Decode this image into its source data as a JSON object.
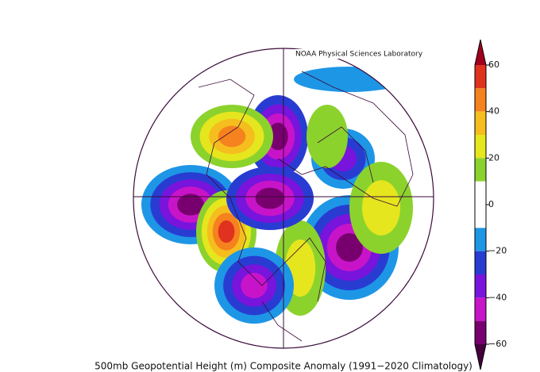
{
  "map": {
    "credit": "NOAA Physical Sciences Laboratory",
    "caption": "500mb Geopotential Height (m) Composite Anomaly (1991−2020 Climatology)",
    "colorbar": {
      "lim": [
        -60,
        60
      ],
      "ticks": [
        60,
        40,
        20,
        0,
        {
          "value": -20,
          "label": "−20"
        },
        {
          "value": -40,
          "label": "−40"
        },
        {
          "value": -60,
          "label": "−60"
        }
      ],
      "colors": [
        "#e0321e",
        "#f5821e",
        "#f5be1e",
        "#e6e61e",
        "#8cd22d",
        "#ffffff",
        "#ffffff",
        "#1e96e6",
        "#283cd2",
        "#7814dc",
        "#c814c8",
        "#78006e"
      ],
      "over_color": "#a0001e",
      "under_color": "#46003c"
    }
  }
}
